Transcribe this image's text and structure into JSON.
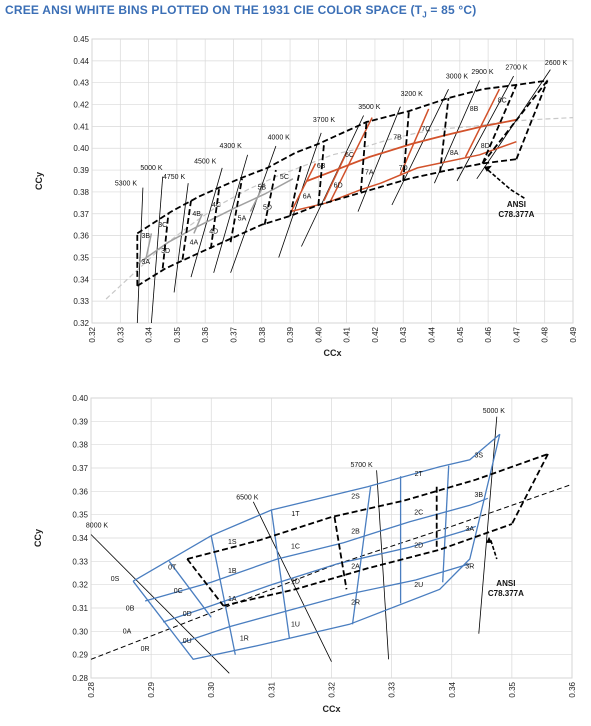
{
  "title": {
    "main": "CREE ANSI WHITE BINS PLOTTED ON THE 1931 CIE COLOR SPACE (T",
    "sub": "J",
    "tail": " = 85 °C)"
  },
  "colors": {
    "grid": "#d9d9d9",
    "gray_bins": "#a0a0a0",
    "red_bins": "#d2522b",
    "blue_bins": "#4a7ec0",
    "black": "#000000",
    "locus": "#c8c8c8",
    "title": "#3b6fb6"
  },
  "chart_data": [
    {
      "type": "scatter",
      "title": "",
      "xlabel": "CCx",
      "ylabel": "CCy",
      "xlim": [
        0.32,
        0.49
      ],
      "ylim": [
        0.32,
        0.45
      ],
      "x_ticks": [
        "0.32",
        "0.33",
        "0.34",
        "0.35",
        "0.36",
        "0.37",
        "0.38",
        "0.39",
        "0.40",
        "0.41",
        "0.42",
        "0.43",
        "0.44",
        "0.45",
        "0.46",
        "0.47",
        "0.48",
        "0.49"
      ],
      "y_ticks": [
        "0.45",
        "0.44",
        "0.43",
        "0.42",
        "0.41",
        "0.40",
        "0.39",
        "0.38",
        "0.37",
        "0.36",
        "0.35",
        "0.34",
        "0.33",
        "0.32"
      ],
      "grid": true,
      "cct_labels": [
        {
          "label": "5300 K",
          "x": 0.332,
          "y": 0.383
        },
        {
          "label": "5000 K",
          "x": 0.341,
          "y": 0.39
        },
        {
          "label": "4750 K",
          "x": 0.349,
          "y": 0.386
        },
        {
          "label": "4500 K",
          "x": 0.36,
          "y": 0.393
        },
        {
          "label": "4300 K",
          "x": 0.369,
          "y": 0.4
        },
        {
          "label": "4000 K",
          "x": 0.386,
          "y": 0.404
        },
        {
          "label": "3700 K",
          "x": 0.402,
          "y": 0.412
        },
        {
          "label": "3500 K",
          "x": 0.418,
          "y": 0.418
        },
        {
          "label": "3200 K",
          "x": 0.433,
          "y": 0.424
        },
        {
          "label": "3000 K",
          "x": 0.449,
          "y": 0.432
        },
        {
          "label": "2900 K",
          "x": 0.458,
          "y": 0.434
        },
        {
          "label": "2700 K",
          "x": 0.47,
          "y": 0.436
        },
        {
          "label": "2600 K",
          "x": 0.484,
          "y": 0.438
        }
      ],
      "bin_labels_gray": [
        {
          "label": "3B",
          "x": 0.339,
          "y": 0.359
        },
        {
          "label": "3C",
          "x": 0.345,
          "y": 0.364
        },
        {
          "label": "3A",
          "x": 0.339,
          "y": 0.347
        },
        {
          "label": "3D",
          "x": 0.346,
          "y": 0.352
        },
        {
          "label": "4B",
          "x": 0.357,
          "y": 0.369
        },
        {
          "label": "4C",
          "x": 0.364,
          "y": 0.373
        },
        {
          "label": "4A",
          "x": 0.356,
          "y": 0.356
        },
        {
          "label": "4D",
          "x": 0.363,
          "y": 0.361
        },
        {
          "label": "5B",
          "x": 0.38,
          "y": 0.381
        },
        {
          "label": "5C",
          "x": 0.388,
          "y": 0.386
        },
        {
          "label": "5A",
          "x": 0.373,
          "y": 0.367
        },
        {
          "label": "5D",
          "x": 0.382,
          "y": 0.372
        }
      ],
      "bin_labels_red": [
        {
          "label": "6B",
          "x": 0.401,
          "y": 0.391
        },
        {
          "label": "6C",
          "x": 0.411,
          "y": 0.396
        },
        {
          "label": "6A",
          "x": 0.396,
          "y": 0.377
        },
        {
          "label": "6D",
          "x": 0.407,
          "y": 0.382
        },
        {
          "label": "7B",
          "x": 0.428,
          "y": 0.404
        },
        {
          "label": "7C",
          "x": 0.438,
          "y": 0.408
        },
        {
          "label": "7A",
          "x": 0.418,
          "y": 0.388
        },
        {
          "label": "7D",
          "x": 0.43,
          "y": 0.39
        },
        {
          "label": "8B",
          "x": 0.455,
          "y": 0.417
        },
        {
          "label": "8C",
          "x": 0.465,
          "y": 0.421
        },
        {
          "label": "8A",
          "x": 0.448,
          "y": 0.397
        },
        {
          "label": "8D",
          "x": 0.459,
          "y": 0.4
        }
      ],
      "annotation": {
        "line1": "ANSI",
        "line2": "C78.377A",
        "x": 0.47,
        "y": 0.373
      }
    },
    {
      "type": "scatter",
      "title": "",
      "xlabel": "CCx",
      "ylabel": "CCy",
      "xlim": [
        0.28,
        0.36
      ],
      "ylim": [
        0.28,
        0.4
      ],
      "x_ticks": [
        "0.28",
        "0.29",
        "0.30",
        "0.31",
        "0.32",
        "0.33",
        "0.34",
        "0.35",
        "0.36"
      ],
      "y_ticks": [
        "0.40",
        "0.39",
        "0.38",
        "0.37",
        "0.36",
        "0.35",
        "0.34",
        "0.33",
        "0.32",
        "0.31",
        "0.30",
        "0.29",
        "0.28"
      ],
      "grid": true,
      "cct_labels": [
        {
          "label": "8000 K",
          "x": 0.281,
          "y": 0.3445
        },
        {
          "label": "6500 K",
          "x": 0.306,
          "y": 0.3565
        },
        {
          "label": "5700 K",
          "x": 0.325,
          "y": 0.3705
        },
        {
          "label": "5000 K",
          "x": 0.347,
          "y": 0.3935
        }
      ],
      "bin_labels": [
        {
          "label": "3S",
          "x": 0.3445,
          "y": 0.3745
        },
        {
          "label": "2T",
          "x": 0.3345,
          "y": 0.3665
        },
        {
          "label": "3B",
          "x": 0.3445,
          "y": 0.3575
        },
        {
          "label": "2S",
          "x": 0.324,
          "y": 0.357
        },
        {
          "label": "2C",
          "x": 0.3345,
          "y": 0.35
        },
        {
          "label": "3A",
          "x": 0.343,
          "y": 0.343
        },
        {
          "label": "1T",
          "x": 0.314,
          "y": 0.3495
        },
        {
          "label": "2B",
          "x": 0.324,
          "y": 0.342
        },
        {
          "label": "2D",
          "x": 0.3345,
          "y": 0.336
        },
        {
          "label": "1S",
          "x": 0.3035,
          "y": 0.3375
        },
        {
          "label": "1C",
          "x": 0.314,
          "y": 0.3355
        },
        {
          "label": "2A",
          "x": 0.324,
          "y": 0.327
        },
        {
          "label": "3R",
          "x": 0.343,
          "y": 0.327
        },
        {
          "label": "0T",
          "x": 0.2935,
          "y": 0.3265
        },
        {
          "label": "1B",
          "x": 0.3035,
          "y": 0.325
        },
        {
          "label": "1D",
          "x": 0.314,
          "y": 0.3205
        },
        {
          "label": "2U",
          "x": 0.3345,
          "y": 0.319
        },
        {
          "label": "0S",
          "x": 0.284,
          "y": 0.3215
        },
        {
          "label": "0C",
          "x": 0.2945,
          "y": 0.3165
        },
        {
          "label": "1A",
          "x": 0.3035,
          "y": 0.313
        },
        {
          "label": "2R",
          "x": 0.324,
          "y": 0.3115
        },
        {
          "label": "0B",
          "x": 0.2865,
          "y": 0.309
        },
        {
          "label": "0D",
          "x": 0.296,
          "y": 0.3065
        },
        {
          "label": "1R",
          "x": 0.3055,
          "y": 0.296
        },
        {
          "label": "1U",
          "x": 0.314,
          "y": 0.302
        },
        {
          "label": "0A",
          "x": 0.286,
          "y": 0.299
        },
        {
          "label": "0U",
          "x": 0.296,
          "y": 0.295
        },
        {
          "label": "0R",
          "x": 0.289,
          "y": 0.2915
        }
      ],
      "annotation": {
        "line1": "ANSI",
        "line2": "C78.377A",
        "x": 0.349,
        "y": 0.3195
      }
    }
  ]
}
